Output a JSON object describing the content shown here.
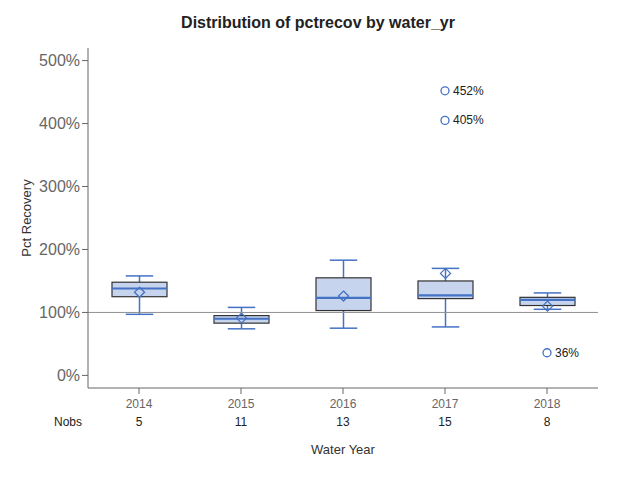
{
  "chart_data": {
    "type": "box",
    "title": "Distribution of pctrecov by water_yr",
    "xlabel": "Water Year",
    "ylabel": "Pct Recovery",
    "categories": [
      "2014",
      "2015",
      "2016",
      "2017",
      "2018"
    ],
    "boxes": [
      {
        "q1": 125,
        "median": 138,
        "q3": 148,
        "whislo": 97,
        "whishi": 158,
        "mean": 132
      },
      {
        "q1": 83,
        "median": 90,
        "q3": 95,
        "whislo": 74,
        "whishi": 108,
        "mean": 91
      },
      {
        "q1": 103,
        "median": 123,
        "q3": 155,
        "whislo": 75,
        "whishi": 183,
        "mean": 126
      },
      {
        "q1": 122,
        "median": 127,
        "q3": 150,
        "whislo": 77,
        "whishi": 170,
        "mean": 162
      },
      {
        "q1": 111,
        "median": 120,
        "q3": 124,
        "whislo": 105,
        "whishi": 131,
        "mean": 110
      }
    ],
    "outliers": [
      [],
      [],
      [],
      [
        452,
        405
      ],
      [
        36
      ]
    ],
    "outlier_labels": [
      [],
      [],
      [],
      [
        "452%",
        "405%"
      ],
      [
        "36%"
      ]
    ],
    "nobs_label": "Nobs",
    "nobs": [
      5,
      11,
      13,
      15,
      8
    ],
    "ref_line": {
      "value": 100,
      "color": "#909090"
    },
    "color": "#4472c4",
    "ylim": [
      -20,
      520
    ],
    "yticks": [
      {
        "value": 0,
        "label": "0%"
      },
      {
        "value": 100,
        "label": "100%"
      },
      {
        "value": 200,
        "label": "200%"
      },
      {
        "value": 300,
        "label": "300%"
      },
      {
        "value": 400,
        "label": "400%"
      },
      {
        "value": 500,
        "label": "500%"
      }
    ],
    "grid": false
  }
}
